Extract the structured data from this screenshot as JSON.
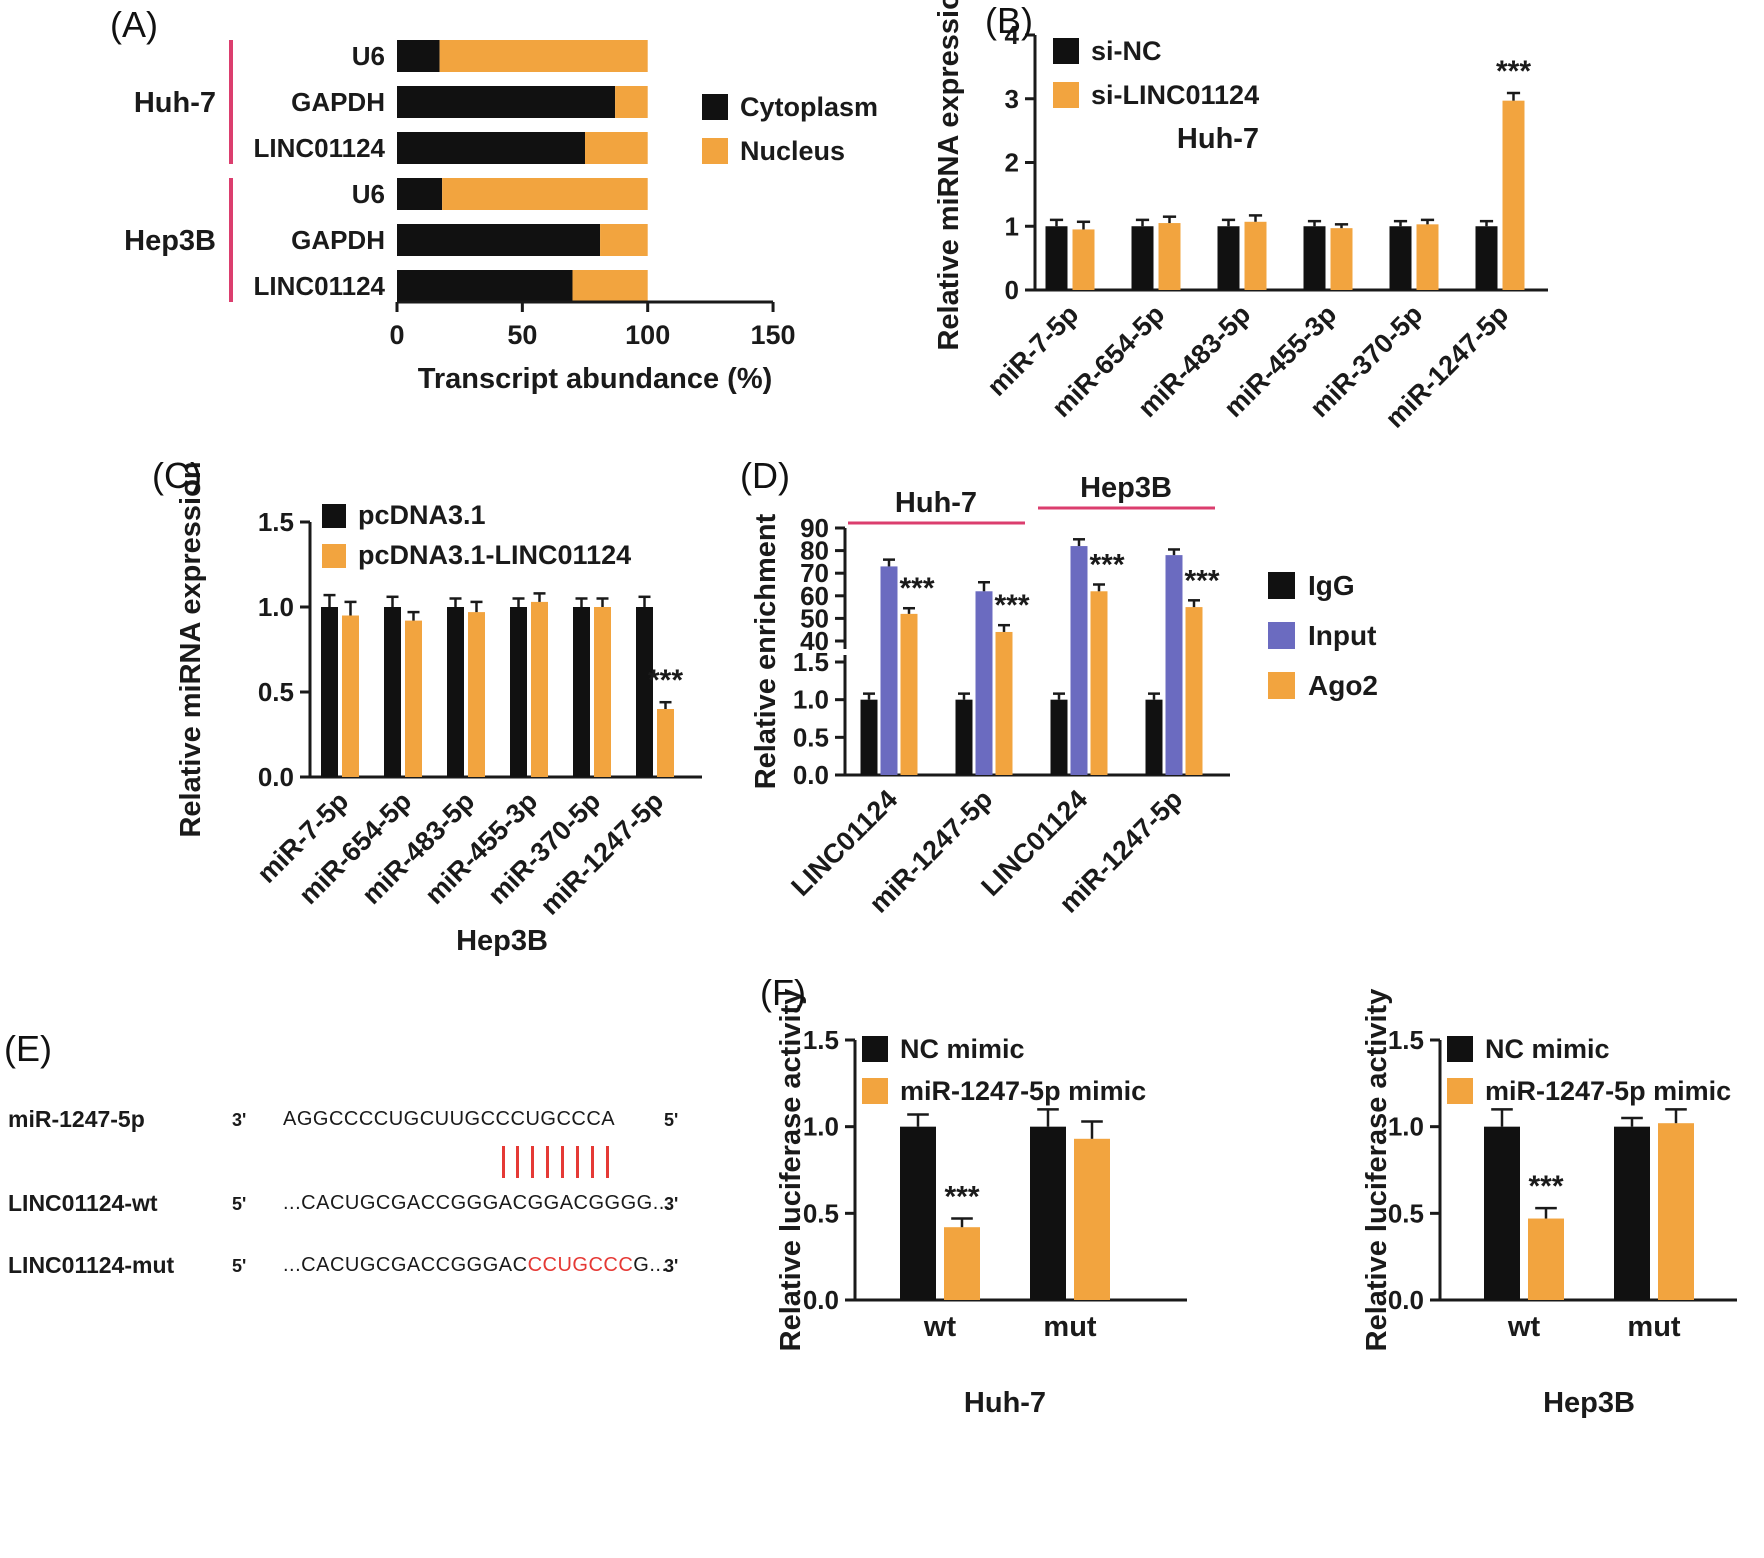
{
  "colors": {
    "bar_black": "#111111",
    "bar_orange": "#F2A43F",
    "bar_blue": "#6B6BC0",
    "accent_pink": "#DB3E6E",
    "sequence_red": "#E53935",
    "text": "#1a1a1a"
  },
  "panels": {
    "A": {
      "label": "(A)"
    },
    "B": {
      "label": "(B)"
    },
    "C": {
      "label": "(C)"
    },
    "D": {
      "label": "(D)"
    },
    "E": {
      "label": "(E)",
      "rows": [
        {
          "name": "miR-1247-5p",
          "left_end": "3'",
          "pre": "AGGCCCCUGCUUGCCCUGCCCA",
          "red": "",
          "post": "",
          "right_end": "5'"
        },
        {
          "name": "LINC01124-wt",
          "left_end": "5'",
          "pre": "...CACUGCGACCGGGACGGACGGGG...",
          "red": "",
          "post": "",
          "right_end": "3'"
        },
        {
          "name": "LINC01124-mut",
          "left_end": "5'",
          "pre": "...CACUGCGACCGGGAC",
          "red": "CCUGCCC",
          "post": "G...",
          "right_end": "3'"
        }
      ],
      "pairing_line_count": 8
    },
    "F": {
      "label": "(F)"
    }
  },
  "chart_data": [
    {
      "id": "A",
      "type": "stacked-horizontal-bar",
      "xlabel": "Transcript abundance (%)",
      "xlim": [
        0,
        150
      ],
      "xticks": [
        "0",
        "50",
        "100",
        "150"
      ],
      "group_labels": [
        "Huh-7",
        "Hep3B"
      ],
      "categories": [
        "U6",
        "GAPDH",
        "LINC01124",
        "U6",
        "GAPDH",
        "LINC01124"
      ],
      "series": [
        {
          "name": "Cytoplasm",
          "color": "#111111",
          "values": [
            17,
            87,
            75,
            18,
            81,
            70
          ]
        },
        {
          "name": "Nucleus",
          "color": "#F2A43F",
          "values": [
            83,
            13,
            25,
            82,
            19,
            30
          ]
        }
      ]
    },
    {
      "id": "B",
      "type": "bar",
      "ylabel": "Relative miRNA expression",
      "ylim": [
        0,
        4
      ],
      "yticks": [
        "0",
        "1",
        "2",
        "3",
        "4"
      ],
      "inner_label": "Huh-7",
      "categories": [
        "miR-7-5p",
        "miR-654-5p",
        "miR-483-5p",
        "miR-455-3p",
        "miR-370-5p",
        "miR-1247-5p"
      ],
      "series": [
        {
          "name": "si-NC",
          "color": "#111111",
          "values": [
            1.0,
            1.0,
            1.0,
            1.0,
            1.0,
            1.0
          ],
          "errors": [
            0.1,
            0.1,
            0.1,
            0.08,
            0.08,
            0.08
          ]
        },
        {
          "name": "si-LINC01124",
          "color": "#F2A43F",
          "values": [
            0.95,
            1.05,
            1.07,
            0.97,
            1.03,
            2.97
          ],
          "errors": [
            0.12,
            0.1,
            0.1,
            0.06,
            0.07,
            0.12
          ]
        }
      ],
      "significance": [
        {
          "series_index": 1,
          "category_index": 5,
          "label": "***"
        }
      ]
    },
    {
      "id": "C",
      "type": "bar",
      "ylabel": "Relative miRNA expression",
      "ylim": [
        0,
        1.5
      ],
      "yticks": [
        "0.0",
        "0.5",
        "1.0",
        "1.5"
      ],
      "xlabel_bottom": "Hep3B",
      "categories": [
        "miR-7-5p",
        "miR-654-5p",
        "miR-483-5p",
        "miR-455-3p",
        "miR-370-5p",
        "miR-1247-5p"
      ],
      "series": [
        {
          "name": "pcDNA3.1",
          "color": "#111111",
          "values": [
            1.0,
            1.0,
            1.0,
            1.0,
            1.0,
            1.0
          ],
          "errors": [
            0.07,
            0.06,
            0.05,
            0.05,
            0.05,
            0.06
          ]
        },
        {
          "name": "pcDNA3.1-LINC01124",
          "color": "#F2A43F",
          "values": [
            0.95,
            0.92,
            0.97,
            1.03,
            1.0,
            0.4
          ],
          "errors": [
            0.08,
            0.05,
            0.06,
            0.05,
            0.05,
            0.04
          ]
        }
      ],
      "significance": [
        {
          "series_index": 1,
          "category_index": 5,
          "label": "***"
        }
      ]
    },
    {
      "id": "D",
      "type": "bar-broken-axis",
      "ylabel": "Relative enrichment",
      "axis_break": {
        "lower_lim": [
          0,
          1.5
        ],
        "lower_ticks": [
          "0.0",
          "0.5",
          "1.0",
          "1.5"
        ],
        "upper_lim": [
          40,
          90
        ],
        "upper_ticks": [
          "40",
          "50",
          "60",
          "70",
          "80",
          "90"
        ]
      },
      "cell_lines": [
        "Huh-7",
        "Hep3B"
      ],
      "categories": [
        "LINC01124",
        "miR-1247-5p",
        "LINC01124",
        "miR-1247-5p"
      ],
      "series": [
        {
          "name": "IgG",
          "color": "#111111",
          "values": [
            1.0,
            1.0,
            1.0,
            1.0
          ],
          "errors": [
            0.08,
            0.08,
            0.08,
            0.08
          ]
        },
        {
          "name": "Input",
          "color": "#6B6BC0",
          "values": [
            73,
            62,
            82,
            78
          ],
          "errors": [
            3,
            4,
            3,
            2.5
          ]
        },
        {
          "name": "Ago2",
          "color": "#F2A43F",
          "values": [
            52,
            44,
            62,
            55
          ],
          "errors": [
            2.5,
            3,
            3,
            3
          ]
        }
      ],
      "significance": [
        {
          "series_index": 2,
          "category_index": 0,
          "label": "***"
        },
        {
          "series_index": 2,
          "category_index": 1,
          "label": "***"
        },
        {
          "series_index": 2,
          "category_index": 2,
          "label": "***"
        },
        {
          "series_index": 2,
          "category_index": 3,
          "label": "***"
        }
      ]
    },
    {
      "id": "F1",
      "type": "bar",
      "ylabel": "Relative luciferase activity",
      "ylim": [
        0,
        1.5
      ],
      "yticks": [
        "0.0",
        "0.5",
        "1.0",
        "1.5"
      ],
      "xlabel_bottom": "Huh-7",
      "categories": [
        "wt",
        "mut"
      ],
      "series": [
        {
          "name": "NC mimic",
          "color": "#111111",
          "values": [
            1.0,
            1.0
          ],
          "errors": [
            0.07,
            0.1
          ]
        },
        {
          "name": "miR-1247-5p mimic",
          "color": "#F2A43F",
          "values": [
            0.42,
            0.93
          ],
          "errors": [
            0.05,
            0.1
          ]
        }
      ],
      "significance": [
        {
          "series_index": 1,
          "category_index": 0,
          "label": "***"
        }
      ]
    },
    {
      "id": "F2",
      "type": "bar",
      "ylabel": "Relative luciferase activity",
      "ylim": [
        0,
        1.5
      ],
      "yticks": [
        "0.0",
        "0.5",
        "1.0",
        "1.5"
      ],
      "xlabel_bottom": "Hep3B",
      "categories": [
        "wt",
        "mut"
      ],
      "series": [
        {
          "name": "NC mimic",
          "color": "#111111",
          "values": [
            1.0,
            1.0
          ],
          "errors": [
            0.1,
            0.05
          ]
        },
        {
          "name": "miR-1247-5p mimic",
          "color": "#F2A43F",
          "values": [
            0.47,
            1.02
          ],
          "errors": [
            0.06,
            0.08
          ]
        }
      ],
      "significance": [
        {
          "series_index": 1,
          "category_index": 0,
          "label": "***"
        }
      ]
    }
  ]
}
